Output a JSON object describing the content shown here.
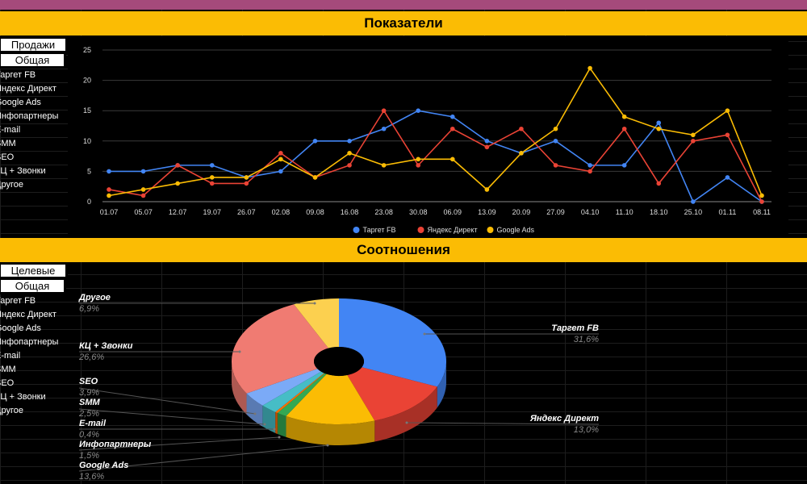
{
  "sheet": {
    "banner_top": "Показатели",
    "banner_bottom": "Соотношения",
    "nav_top": {
      "header1": "Продажи",
      "header2": "Общая",
      "items": [
        "Таргет FB",
        "Яндекс Директ",
        "Google Ads",
        "Инфопартнеры",
        "E-mail",
        "SMM",
        "SEO",
        "КЦ + Звонки",
        "Другое"
      ]
    },
    "nav_bottom": {
      "header1": "Целевые",
      "header2": "Общая",
      "items": [
        "Таргет FB",
        "Яндекс Директ",
        "Google Ads",
        "Инфопартнеры",
        "E-mail",
        "SMM",
        "SEO",
        "КЦ + Звонки",
        "Другое"
      ]
    }
  },
  "chart_data": [
    {
      "type": "line",
      "x": [
        "01.07",
        "05.07",
        "12.07",
        "19.07",
        "26.07",
        "02.08",
        "09.08",
        "16.08",
        "23.08",
        "30.08",
        "06.09",
        "13.09",
        "20.09",
        "27.09",
        "04.10",
        "11.10",
        "18.10",
        "25.10",
        "01.11",
        "08.11"
      ],
      "ylim": [
        0,
        25
      ],
      "yticks": [
        0,
        5,
        10,
        15,
        20,
        25
      ],
      "grid": true,
      "legend": "bottom",
      "series": [
        {
          "name": "Таргет FB",
          "color": "#4285f4",
          "values": [
            5,
            5,
            6,
            6,
            4,
            5,
            10,
            10,
            12,
            15,
            14,
            10,
            8,
            10,
            6,
            6,
            13,
            0,
            4,
            0
          ]
        },
        {
          "name": "Яндекс Директ",
          "color": "#ea4335",
          "values": [
            2,
            1,
            6,
            3,
            3,
            8,
            4,
            6,
            15,
            6,
            12,
            9,
            12,
            6,
            5,
            12,
            3,
            10,
            11,
            0
          ]
        },
        {
          "name": "Google Ads",
          "color": "#fbbc04",
          "values": [
            1,
            2,
            3,
            4,
            4,
            7,
            4,
            8,
            6,
            7,
            7,
            2,
            8,
            12,
            22,
            14,
            12,
            11,
            15,
            1
          ]
        }
      ]
    },
    {
      "type": "pie",
      "donut": true,
      "slices": [
        {
          "label": "Таргет FB",
          "value": 31.6,
          "pct_label": "31,6%",
          "color": "#4285f4"
        },
        {
          "label": "Яндекс Директ",
          "value": 13.0,
          "pct_label": "13,0%",
          "color": "#ea4335"
        },
        {
          "label": "Google Ads",
          "value": 13.6,
          "pct_label": "13,6%",
          "color": "#fbbc04"
        },
        {
          "label": "Инфопартнеры",
          "value": 1.5,
          "pct_label": "1,5%",
          "color": "#34a853"
        },
        {
          "label": "E-mail",
          "value": 0.4,
          "pct_label": "0,4%",
          "color": "#ff6d01"
        },
        {
          "label": "SMM",
          "value": 2.5,
          "pct_label": "2,5%",
          "color": "#46bdc6"
        },
        {
          "label": "SEO",
          "value": 3.9,
          "pct_label": "3,9%",
          "color": "#7baaf7"
        },
        {
          "label": "КЦ + Звонки",
          "value": 26.6,
          "pct_label": "26,6%",
          "color": "#f07b72"
        },
        {
          "label": "Другое",
          "value": 6.9,
          "pct_label": "6,9%",
          "color": "#fcd04f"
        }
      ]
    }
  ]
}
